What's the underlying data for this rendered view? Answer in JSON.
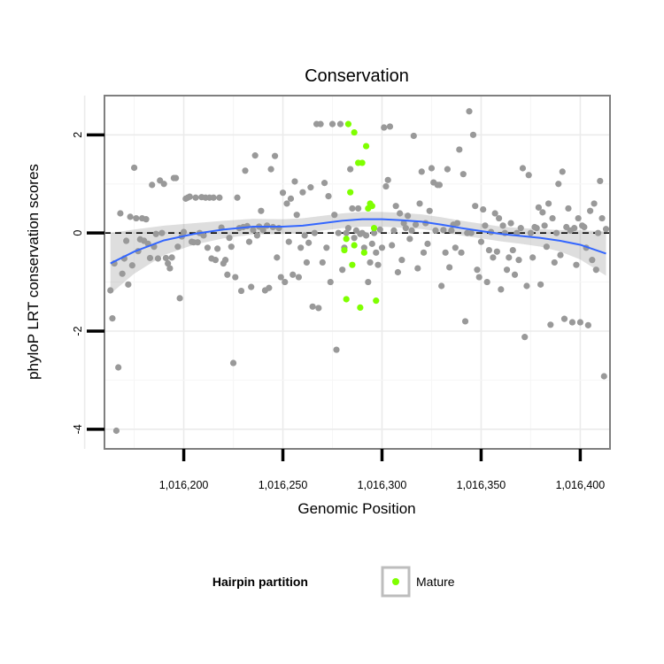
{
  "chart_data": {
    "type": "scatter",
    "title": "Conservation",
    "xlabel": "Genomic Position",
    "ylabel": "phyloP LRT conservation scores",
    "xlim": [
      1016160,
      1016415
    ],
    "ylim": [
      -4.4,
      2.8
    ],
    "x_ticks": [
      1016200,
      1016250,
      1016300,
      1016350,
      1016400
    ],
    "x_tick_labels": [
      "1,016,200",
      "1,016,250",
      "1,016,300",
      "1,016,350",
      "1,016,400"
    ],
    "y_ticks": [
      -4,
      -2,
      0,
      2
    ],
    "y_tick_labels": [
      "-4",
      "-2",
      "0",
      "2"
    ],
    "reference_line": 0,
    "grid": true,
    "legend": {
      "title": "Hairpin partition",
      "position": "bottom",
      "items": [
        {
          "label": "Mature",
          "color": "#7fff00"
        }
      ]
    },
    "series": [
      {
        "color": "#999999",
        "points": [
          [
            1016163,
            -1.17
          ],
          [
            1016164,
            -1.74
          ],
          [
            1016165,
            -0.62
          ],
          [
            1016166,
            -4.03
          ],
          [
            1016167,
            -2.74
          ],
          [
            1016168,
            0.4
          ],
          [
            1016169,
            -0.83
          ],
          [
            1016170,
            -0.52
          ],
          [
            1016171,
            -0.16
          ],
          [
            1016172,
            -1.05
          ],
          [
            1016173,
            0.33
          ],
          [
            1016174,
            -0.66
          ],
          [
            1016175,
            1.33
          ],
          [
            1016176,
            0.3
          ],
          [
            1016177,
            -0.37
          ],
          [
            1016178,
            -0.13
          ],
          [
            1016179,
            0.3
          ],
          [
            1016180,
            -0.16
          ],
          [
            1016181,
            0.28
          ],
          [
            1016182,
            -0.22
          ],
          [
            1016183,
            -0.51
          ],
          [
            1016184,
            0.98
          ],
          [
            1016185,
            -0.28
          ],
          [
            1016186,
            -0.02
          ],
          [
            1016187,
            -0.52
          ],
          [
            1016188,
            1.07
          ],
          [
            1016189,
            0.0
          ],
          [
            1016190,
            1.0
          ],
          [
            1016191,
            -0.51
          ],
          [
            1016192,
            -0.62
          ],
          [
            1016193,
            -0.72
          ],
          [
            1016194,
            -0.5
          ],
          [
            1016195,
            1.12
          ],
          [
            1016196,
            1.12
          ],
          [
            1016197,
            -0.28
          ],
          [
            1016198,
            -1.33
          ],
          [
            1016199,
            -0.07
          ],
          [
            1016200,
            0.02
          ],
          [
            1016201,
            0.7
          ],
          [
            1016202,
            0.72
          ],
          [
            1016203,
            0.74
          ],
          [
            1016204,
            -0.18
          ],
          [
            1016205,
            -0.19
          ],
          [
            1016206,
            0.72
          ],
          [
            1016207,
            -0.19
          ],
          [
            1016208,
            0.0
          ],
          [
            1016209,
            0.73
          ],
          [
            1016210,
            -0.05
          ],
          [
            1016211,
            0.72
          ],
          [
            1016212,
            -0.3
          ],
          [
            1016213,
            0.72
          ],
          [
            1016214,
            -0.52
          ],
          [
            1016215,
            0.72
          ],
          [
            1016216,
            -0.55
          ],
          [
            1016217,
            -0.32
          ],
          [
            1016218,
            0.72
          ],
          [
            1016219,
            0.11
          ],
          [
            1016220,
            -0.62
          ],
          [
            1016221,
            -0.55
          ],
          [
            1016222,
            -0.85
          ],
          [
            1016223,
            -0.1
          ],
          [
            1016224,
            -0.28
          ],
          [
            1016225,
            -2.65
          ],
          [
            1016226,
            -0.9
          ],
          [
            1016227,
            0.72
          ],
          [
            1016228,
            0.1
          ],
          [
            1016229,
            -1.18
          ],
          [
            1016230,
            0.12
          ],
          [
            1016231,
            1.27
          ],
          [
            1016232,
            0.14
          ],
          [
            1016233,
            -0.18
          ],
          [
            1016234,
            -1.1
          ],
          [
            1016235,
            0.06
          ],
          [
            1016236,
            1.58
          ],
          [
            1016237,
            -0.05
          ],
          [
            1016238,
            0.13
          ],
          [
            1016239,
            0.45
          ],
          [
            1016240,
            0.06
          ],
          [
            1016241,
            -1.17
          ],
          [
            1016242,
            0.15
          ],
          [
            1016243,
            -1.12
          ],
          [
            1016244,
            1.3
          ],
          [
            1016245,
            0.12
          ],
          [
            1016246,
            1.57
          ],
          [
            1016247,
            -0.5
          ],
          [
            1016248,
            0.1
          ],
          [
            1016249,
            -0.9
          ],
          [
            1016250,
            0.82
          ],
          [
            1016251,
            -1.0
          ],
          [
            1016252,
            0.6
          ],
          [
            1016253,
            -0.18
          ],
          [
            1016254,
            0.7
          ],
          [
            1016255,
            -0.85
          ],
          [
            1016256,
            1.05
          ],
          [
            1016257,
            0.37
          ],
          [
            1016258,
            -0.9
          ],
          [
            1016259,
            -0.3
          ],
          [
            1016260,
            0.83
          ],
          [
            1016261,
            -0.05
          ],
          [
            1016262,
            -0.6
          ],
          [
            1016263,
            -0.2
          ],
          [
            1016264,
            0.93
          ],
          [
            1016265,
            -1.5
          ],
          [
            1016266,
            0.0
          ],
          [
            1016267,
            2.22
          ],
          [
            1016268,
            -1.53
          ],
          [
            1016269,
            2.22
          ],
          [
            1016270,
            -0.6
          ],
          [
            1016271,
            1.02
          ],
          [
            1016272,
            -0.3
          ],
          [
            1016273,
            0.75
          ],
          [
            1016274,
            -1.0
          ],
          [
            1016275,
            2.22
          ],
          [
            1016276,
            0.37
          ],
          [
            1016277,
            -2.38
          ],
          [
            1016278,
            0.0
          ],
          [
            1016279,
            2.22
          ],
          [
            1016280,
            -0.75
          ],
          [
            1016281,
            -0.3
          ],
          [
            1016282,
            0.0
          ],
          [
            1016283,
            0.1
          ],
          [
            1016284,
            1.3
          ],
          [
            1016285,
            0.5
          ],
          [
            1016286,
            -0.1
          ],
          [
            1016287,
            0.05
          ],
          [
            1016288,
            0.5
          ],
          [
            1016289,
            -0.02
          ],
          [
            1016290,
            0.0
          ],
          [
            1016291,
            -0.3
          ],
          [
            1016292,
            -0.05
          ],
          [
            1016293,
            -1.0
          ],
          [
            1016294,
            -0.6
          ],
          [
            1016295,
            -0.22
          ],
          [
            1016296,
            0.0
          ],
          [
            1016297,
            -0.4
          ],
          [
            1016298,
            -0.65
          ],
          [
            1016299,
            0.07
          ],
          [
            1016300,
            -0.3
          ],
          [
            1016301,
            2.15
          ],
          [
            1016302,
            0.95
          ],
          [
            1016303,
            1.08
          ],
          [
            1016304,
            2.17
          ],
          [
            1016305,
            -0.25
          ],
          [
            1016306,
            0.05
          ],
          [
            1016307,
            0.55
          ],
          [
            1016308,
            -0.8
          ],
          [
            1016309,
            0.4
          ],
          [
            1016310,
            -0.55
          ],
          [
            1016311,
            0.2
          ],
          [
            1016312,
            0.1
          ],
          [
            1016313,
            0.35
          ],
          [
            1016314,
            -0.12
          ],
          [
            1016315,
            0.05
          ],
          [
            1016316,
            1.98
          ],
          [
            1016317,
            0.17
          ],
          [
            1016318,
            -0.72
          ],
          [
            1016319,
            0.6
          ],
          [
            1016320,
            1.25
          ],
          [
            1016321,
            -0.4
          ],
          [
            1016322,
            0.2
          ],
          [
            1016323,
            -0.22
          ],
          [
            1016324,
            0.45
          ],
          [
            1016325,
            1.32
          ],
          [
            1016326,
            1.03
          ],
          [
            1016327,
            0.05
          ],
          [
            1016328,
            0.98
          ],
          [
            1016329,
            0.98
          ],
          [
            1016330,
            -1.08
          ],
          [
            1016331,
            0.06
          ],
          [
            1016332,
            -0.4
          ],
          [
            1016333,
            1.3
          ],
          [
            1016334,
            -0.7
          ],
          [
            1016335,
            0.05
          ],
          [
            1016336,
            0.17
          ],
          [
            1016337,
            -0.3
          ],
          [
            1016338,
            0.2
          ],
          [
            1016339,
            1.7
          ],
          [
            1016340,
            -0.4
          ],
          [
            1016341,
            1.2
          ],
          [
            1016342,
            -1.8
          ],
          [
            1016343,
            0.0
          ],
          [
            1016344,
            2.48
          ],
          [
            1016345,
            0.0
          ],
          [
            1016346,
            2.0
          ],
          [
            1016347,
            0.55
          ],
          [
            1016348,
            -0.75
          ],
          [
            1016349,
            -0.9
          ],
          [
            1016350,
            -0.18
          ],
          [
            1016351,
            0.48
          ],
          [
            1016352,
            0.15
          ],
          [
            1016353,
            -1.0
          ],
          [
            1016354,
            -0.35
          ],
          [
            1016355,
            0.02
          ],
          [
            1016356,
            -0.5
          ],
          [
            1016357,
            0.4
          ],
          [
            1016358,
            -0.38
          ],
          [
            1016359,
            0.3
          ],
          [
            1016360,
            -1.15
          ],
          [
            1016361,
            0.15
          ],
          [
            1016362,
            0.0
          ],
          [
            1016363,
            -0.75
          ],
          [
            1016364,
            -0.5
          ],
          [
            1016365,
            0.2
          ],
          [
            1016366,
            -0.35
          ],
          [
            1016367,
            -0.85
          ],
          [
            1016368,
            0.0
          ],
          [
            1016369,
            -0.55
          ],
          [
            1016370,
            0.1
          ],
          [
            1016371,
            1.32
          ],
          [
            1016372,
            -2.12
          ],
          [
            1016373,
            -1.08
          ],
          [
            1016374,
            1.18
          ],
          [
            1016375,
            0.0
          ],
          [
            1016376,
            -0.5
          ],
          [
            1016377,
            0.12
          ],
          [
            1016378,
            0.1
          ],
          [
            1016379,
            0.52
          ],
          [
            1016380,
            -1.05
          ],
          [
            1016381,
            0.42
          ],
          [
            1016382,
            0.15
          ],
          [
            1016383,
            -0.28
          ],
          [
            1016384,
            0.6
          ],
          [
            1016385,
            -1.87
          ],
          [
            1016386,
            0.3
          ],
          [
            1016387,
            -0.6
          ],
          [
            1016388,
            0.0
          ],
          [
            1016389,
            1.0
          ],
          [
            1016390,
            -0.45
          ],
          [
            1016391,
            1.25
          ],
          [
            1016392,
            -1.75
          ],
          [
            1016393,
            0.12
          ],
          [
            1016394,
            0.5
          ],
          [
            1016395,
            0.05
          ],
          [
            1016396,
            -1.82
          ],
          [
            1016397,
            0.1
          ],
          [
            1016398,
            -0.65
          ],
          [
            1016399,
            0.3
          ],
          [
            1016400,
            -1.82
          ],
          [
            1016401,
            0.15
          ],
          [
            1016402,
            0.12
          ],
          [
            1016403,
            -0.3
          ],
          [
            1016404,
            -1.88
          ],
          [
            1016405,
            0.45
          ],
          [
            1016406,
            -0.55
          ],
          [
            1016407,
            0.6
          ],
          [
            1016408,
            -0.75
          ],
          [
            1016409,
            0.0
          ],
          [
            1016410,
            1.06
          ],
          [
            1016411,
            0.3
          ],
          [
            1016412,
            -2.92
          ],
          [
            1016413,
            0.08
          ]
        ]
      },
      {
        "name": "Mature",
        "color": "#7fff00",
        "points": [
          [
            1016281,
            -0.35
          ],
          [
            1016282,
            -1.35
          ],
          [
            1016282,
            -0.12
          ],
          [
            1016283,
            2.22
          ],
          [
            1016284,
            0.83
          ],
          [
            1016285,
            -0.65
          ],
          [
            1016286,
            2.05
          ],
          [
            1016286,
            -0.25
          ],
          [
            1016288,
            1.43
          ],
          [
            1016289,
            -1.52
          ],
          [
            1016290,
            1.43
          ],
          [
            1016291,
            -0.4
          ],
          [
            1016292,
            1.77
          ],
          [
            1016293,
            0.5
          ],
          [
            1016294,
            0.6
          ],
          [
            1016295,
            0.55
          ],
          [
            1016296,
            0.1
          ],
          [
            1016297,
            -1.38
          ]
        ]
      }
    ],
    "smooth": {
      "color": "#3366ff",
      "x": [
        1016163,
        1016175,
        1016190,
        1016205,
        1016220,
        1016235,
        1016250,
        1016260,
        1016270,
        1016280,
        1016290,
        1016300,
        1016310,
        1016320,
        1016330,
        1016340,
        1016350,
        1016360,
        1016370,
        1016380,
        1016390,
        1016400,
        1016413
      ],
      "y": [
        -0.62,
        -0.38,
        -0.15,
        -0.02,
        0.07,
        0.13,
        0.13,
        0.15,
        0.2,
        0.25,
        0.28,
        0.28,
        0.26,
        0.23,
        0.17,
        0.1,
        0.04,
        -0.02,
        -0.06,
        -0.1,
        -0.16,
        -0.24,
        -0.42
      ],
      "band": [
        0.62,
        0.45,
        0.3,
        0.22,
        0.18,
        0.16,
        0.15,
        0.15,
        0.15,
        0.15,
        0.15,
        0.15,
        0.15,
        0.15,
        0.15,
        0.15,
        0.15,
        0.15,
        0.16,
        0.18,
        0.22,
        0.3,
        0.45
      ]
    }
  }
}
